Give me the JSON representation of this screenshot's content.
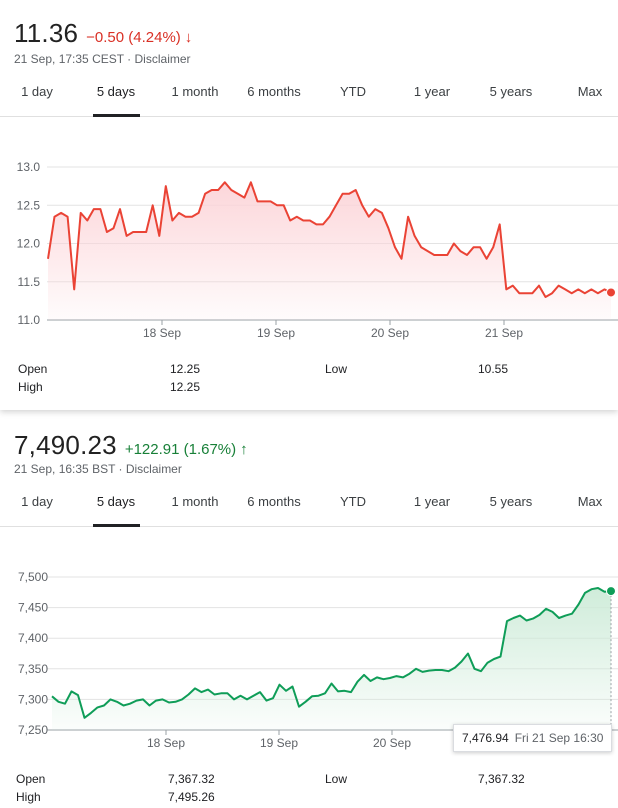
{
  "widget1": {
    "price": "11.36",
    "change": "−0.50 (4.24%)",
    "meta": "21 Sep, 17:35 CEST · Disclaimer",
    "tabs": [
      "1 day",
      "5 days",
      "1 month",
      "6 months",
      "YTD",
      "1 year",
      "5 years",
      "Max"
    ],
    "active_tab": "5 days",
    "stats": {
      "open_label": "Open",
      "open_value": "12.25",
      "high_label": "High",
      "high_value": "12.25",
      "low_label": "Low",
      "low_value": "10.55"
    },
    "colors": {
      "line": "#ea4335",
      "fill": "#fcd4d8",
      "change": "#d93025"
    },
    "chart_data": {
      "type": "area",
      "x_tick_labels": [
        "18 Sep",
        "19 Sep",
        "20 Sep",
        "21 Sep"
      ],
      "y_tick_labels": [
        "13.0",
        "12.5",
        "12.0",
        "11.5",
        "11.0"
      ],
      "ylim": [
        11.0,
        13.0
      ],
      "grid": "horizontal",
      "values": [
        11.8,
        12.35,
        12.4,
        12.35,
        11.4,
        12.4,
        12.3,
        12.45,
        12.45,
        12.15,
        12.2,
        12.45,
        12.1,
        12.15,
        12.15,
        12.15,
        12.5,
        12.1,
        12.75,
        12.3,
        12.4,
        12.35,
        12.35,
        12.4,
        12.65,
        12.7,
        12.7,
        12.8,
        12.7,
        12.65,
        12.6,
        12.8,
        12.55,
        12.55,
        12.55,
        12.5,
        12.5,
        12.3,
        12.35,
        12.3,
        12.3,
        12.25,
        12.25,
        12.35,
        12.5,
        12.65,
        12.65,
        12.7,
        12.5,
        12.35,
        12.45,
        12.4,
        12.2,
        11.95,
        11.8,
        12.35,
        12.1,
        11.95,
        11.9,
        11.85,
        11.85,
        11.85,
        12.0,
        11.9,
        11.85,
        11.95,
        11.95,
        11.8,
        11.95,
        12.25,
        11.4,
        11.45,
        11.35,
        11.35,
        11.35,
        11.45,
        11.3,
        11.35,
        11.45,
        11.4,
        11.35,
        11.4,
        11.35,
        11.4,
        11.35,
        11.4,
        11.36
      ]
    }
  },
  "widget2": {
    "price": "7,490.23",
    "change": "+122.91 (1.67%)",
    "meta": "21 Sep, 16:35 BST · Disclaimer",
    "tabs": [
      "1 day",
      "5 days",
      "1 month",
      "6 months",
      "YTD",
      "1 year",
      "5 years",
      "Max"
    ],
    "active_tab": "5 days",
    "stats": {
      "open_label": "Open",
      "open_value": "7,367.32",
      "high_label": "High",
      "high_value": "7,495.26",
      "low_label": "Low",
      "low_value": "7,367.32"
    },
    "tooltip": {
      "value": "7,476.94",
      "date": "Fri 21 Sep 16:30"
    },
    "colors": {
      "line": "#0f9d58",
      "fill": "#cdebd8",
      "change": "#188038"
    },
    "chart_data": {
      "type": "area",
      "x_tick_labels": [
        "18 Sep",
        "19 Sep",
        "20 Sep",
        "21 Sep"
      ],
      "y_tick_labels": [
        "7,500",
        "7,450",
        "7,400",
        "7,350",
        "7,300",
        "7,250"
      ],
      "ylim": [
        7250,
        7500
      ],
      "grid": "horizontal",
      "values": [
        7305,
        7296,
        7293,
        7313,
        7307,
        7270,
        7278,
        7287,
        7290,
        7300,
        7296,
        7290,
        7293,
        7298,
        7300,
        7290,
        7298,
        7300,
        7295,
        7296,
        7300,
        7308,
        7318,
        7312,
        7316,
        7308,
        7310,
        7310,
        7300,
        7306,
        7300,
        7306,
        7312,
        7298,
        7302,
        7324,
        7314,
        7321,
        7288,
        7296,
        7305,
        7306,
        7310,
        7326,
        7313,
        7314,
        7312,
        7329,
        7340,
        7330,
        7336,
        7333,
        7335,
        7338,
        7336,
        7342,
        7350,
        7345,
        7347,
        7348,
        7348,
        7346,
        7352,
        7362,
        7375,
        7350,
        7346,
        7360,
        7366,
        7370,
        7428,
        7433,
        7437,
        7429,
        7432,
        7438,
        7448,
        7443,
        7433,
        7437,
        7440,
        7455,
        7474,
        7480,
        7482,
        7476,
        7477
      ]
    }
  }
}
